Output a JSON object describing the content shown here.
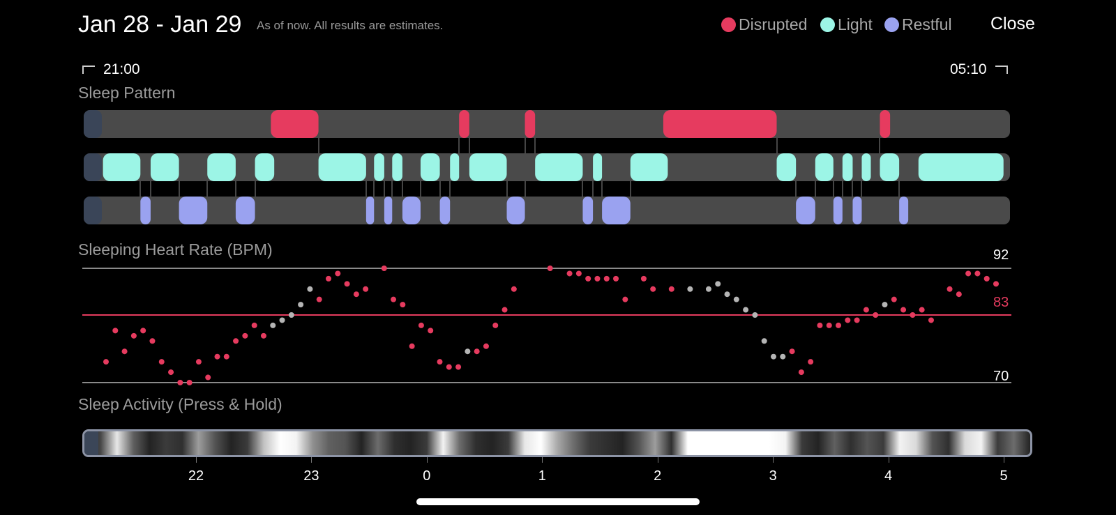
{
  "header": {
    "date_range": "Jan 28 - Jan 29",
    "subtitle": "As of now. All results are estimates.",
    "close_label": "Close"
  },
  "legend": [
    {
      "label": "Disrupted",
      "color": "#e63b5f"
    },
    {
      "label": "Light",
      "color": "#9cf5e6"
    },
    {
      "label": "Restful",
      "color": "#9aa2f0"
    }
  ],
  "time_range": {
    "start": "21:00",
    "end": "05:10"
  },
  "sleep_pattern": {
    "title": "Sleep Pattern",
    "start_hour": 21.0,
    "end_hour": 29.167,
    "track_color": "#4a4a4a",
    "start_cap_color": "#3a4558",
    "disrupted": [
      [
        22.65,
        23.07
      ],
      [
        24.31,
        24.4
      ],
      [
        24.89,
        24.98
      ],
      [
        26.11,
        27.11
      ],
      [
        28.02,
        28.11
      ]
    ],
    "light": [
      [
        21.17,
        21.5
      ],
      [
        21.59,
        21.84
      ],
      [
        22.09,
        22.34
      ],
      [
        22.51,
        22.68
      ],
      [
        23.07,
        23.49
      ],
      [
        23.56,
        23.65
      ],
      [
        23.72,
        23.81
      ],
      [
        23.97,
        24.14
      ],
      [
        24.23,
        24.31
      ],
      [
        24.4,
        24.73
      ],
      [
        24.98,
        25.4
      ],
      [
        25.49,
        25.57
      ],
      [
        25.82,
        26.15
      ],
      [
        27.11,
        27.28
      ],
      [
        27.45,
        27.61
      ],
      [
        27.69,
        27.78
      ],
      [
        27.86,
        27.94
      ],
      [
        28.02,
        28.19
      ],
      [
        28.36,
        29.11
      ]
    ],
    "restful": [
      [
        21.5,
        21.59
      ],
      [
        21.84,
        22.09
      ],
      [
        22.34,
        22.51
      ],
      [
        23.49,
        23.56
      ],
      [
        23.65,
        23.72
      ],
      [
        23.81,
        23.97
      ],
      [
        24.14,
        24.23
      ],
      [
        24.73,
        24.89
      ],
      [
        25.4,
        25.49
      ],
      [
        25.57,
        25.82
      ],
      [
        27.28,
        27.45
      ],
      [
        27.61,
        27.69
      ],
      [
        27.78,
        27.86
      ],
      [
        28.19,
        28.27
      ]
    ]
  },
  "heart_rate": {
    "title": "Sleeping Heart Rate (BPM)",
    "max": 92,
    "avg": 83,
    "min": 70,
    "max_label": "92",
    "avg_label": "83",
    "min_label": "70",
    "above_color": "#e63b5f",
    "below_color": "#e63b5f",
    "neutral_color": "#b5b5b5",
    "samples": [
      [
        21.2,
        74,
        "r"
      ],
      [
        21.3,
        80,
        "r"
      ],
      [
        21.4,
        76,
        "r"
      ],
      [
        21.5,
        79,
        "r"
      ],
      [
        21.6,
        80,
        "r"
      ],
      [
        21.7,
        78,
        "r"
      ],
      [
        21.8,
        74,
        "r"
      ],
      [
        21.9,
        72,
        "r"
      ],
      [
        22.0,
        70,
        "r"
      ],
      [
        22.1,
        70,
        "r"
      ],
      [
        22.2,
        74,
        "r"
      ],
      [
        22.3,
        71,
        "r"
      ],
      [
        22.4,
        75,
        "r"
      ],
      [
        22.5,
        75,
        "r"
      ],
      [
        22.6,
        78,
        "r"
      ],
      [
        22.7,
        79,
        "r"
      ],
      [
        22.8,
        81,
        "r"
      ],
      [
        22.9,
        79,
        "r"
      ],
      [
        23.0,
        81,
        "g"
      ],
      [
        23.1,
        82,
        "g"
      ],
      [
        23.2,
        83,
        "g"
      ],
      [
        23.3,
        85,
        "g"
      ],
      [
        23.4,
        88,
        "g"
      ],
      [
        23.5,
        86,
        "r"
      ],
      [
        23.6,
        90,
        "r"
      ],
      [
        23.7,
        91,
        "r"
      ],
      [
        23.8,
        89,
        "r"
      ],
      [
        23.9,
        87,
        "r"
      ],
      [
        24.0,
        88,
        "r"
      ],
      [
        24.2,
        92,
        "r"
      ],
      [
        24.3,
        86,
        "r"
      ],
      [
        24.4,
        85,
        "r"
      ],
      [
        24.5,
        77,
        "r"
      ],
      [
        24.6,
        81,
        "r"
      ],
      [
        24.7,
        80,
        "r"
      ],
      [
        24.8,
        74,
        "r"
      ],
      [
        24.9,
        73,
        "r"
      ],
      [
        25.0,
        73,
        "r"
      ],
      [
        25.1,
        76,
        "g"
      ],
      [
        25.2,
        76,
        "r"
      ],
      [
        25.3,
        77,
        "r"
      ],
      [
        25.4,
        81,
        "r"
      ],
      [
        25.5,
        84,
        "r"
      ],
      [
        25.6,
        88,
        "r"
      ],
      [
        25.99,
        92,
        "r"
      ],
      [
        26.2,
        91,
        "r"
      ],
      [
        26.3,
        91,
        "r"
      ],
      [
        26.4,
        90,
        "r"
      ],
      [
        26.5,
        90,
        "r"
      ],
      [
        26.6,
        90,
        "r"
      ],
      [
        26.7,
        90,
        "r"
      ],
      [
        26.8,
        86,
        "r"
      ],
      [
        27.0,
        90,
        "r"
      ],
      [
        27.1,
        88,
        "r"
      ],
      [
        27.3,
        88,
        "r"
      ],
      [
        27.5,
        88,
        "g"
      ],
      [
        27.7,
        88,
        "g"
      ],
      [
        27.8,
        89,
        "g"
      ],
      [
        27.9,
        87,
        "g"
      ],
      [
        28.0,
        86,
        "g"
      ],
      [
        28.1,
        84,
        "g"
      ],
      [
        28.2,
        83,
        "g"
      ],
      [
        28.3,
        78,
        "g"
      ],
      [
        28.4,
        75,
        "g"
      ],
      [
        28.5,
        75,
        "g"
      ],
      [
        28.6,
        76,
        "r"
      ],
      [
        28.7,
        72,
        "r"
      ],
      [
        28.8,
        74,
        "r"
      ],
      [
        28.9,
        81,
        "r"
      ],
      [
        29.0,
        81,
        "r"
      ],
      [
        29.1,
        81,
        "r"
      ],
      [
        29.2,
        82,
        "r"
      ],
      [
        29.3,
        82,
        "r"
      ],
      [
        29.4,
        84,
        "r"
      ],
      [
        29.5,
        83,
        "r"
      ],
      [
        29.6,
        85,
        "g"
      ],
      [
        29.7,
        86,
        "r"
      ],
      [
        29.8,
        84,
        "r"
      ],
      [
        29.9,
        83,
        "r"
      ],
      [
        30.0,
        84,
        "r"
      ],
      [
        30.1,
        82,
        "r"
      ],
      [
        30.3,
        88,
        "r"
      ],
      [
        30.4,
        87,
        "r"
      ],
      [
        30.5,
        91,
        "r"
      ],
      [
        30.6,
        91,
        "r"
      ],
      [
        30.7,
        90,
        "r"
      ],
      [
        30.8,
        89,
        "r"
      ]
    ]
  },
  "sleep_activity": {
    "title": "Sleep Activity (Press & Hold)",
    "levels": [
      0.05,
      0.25,
      0.9,
      0.35,
      0.1,
      0.2,
      0.15,
      0.6,
      0.3,
      0.1,
      0.2,
      0.75,
      1.0,
      0.95,
      0.55,
      0.35,
      0.3,
      0.1,
      0.4,
      0.15,
      0.1,
      0.2,
      0.95,
      0.4,
      0.15,
      0.1,
      0.2,
      0.9,
      1.0,
      0.65,
      0.4,
      0.2,
      0.15,
      0.1,
      0.3,
      0.6,
      0.15,
      1.0,
      1.0,
      1.0,
      1.0,
      1.0,
      1.0,
      0.95,
      0.2,
      0.1,
      0.35,
      0.15,
      0.3,
      0.2,
      0.95,
      0.85,
      0.3,
      0.15,
      0.85,
      0.95,
      0.2,
      0.4,
      0.1
    ]
  },
  "x_axis": {
    "ticks": [
      {
        "label": "22",
        "hour": 22
      },
      {
        "label": "23",
        "hour": 23
      },
      {
        "label": "0",
        "hour": 24
      },
      {
        "label": "1",
        "hour": 25
      },
      {
        "label": "2",
        "hour": 26
      },
      {
        "label": "3",
        "hour": 27
      },
      {
        "label": "4",
        "hour": 28
      },
      {
        "label": "5",
        "hour": 29
      }
    ]
  }
}
